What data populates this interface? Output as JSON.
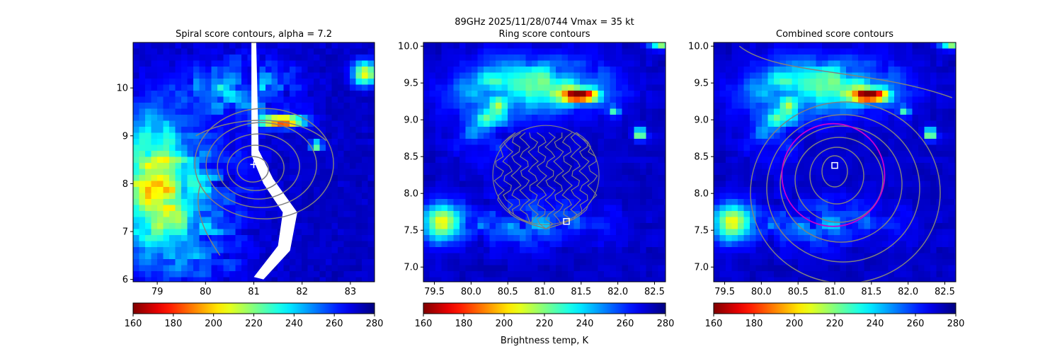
{
  "suptitle": "89GHz  2025/11/28/0744    Vmax = 35 kt",
  "colorbar_label": "Brightness temp, K",
  "colormap": [
    "#800000",
    "#ff0000",
    "#ff8000",
    "#ffff00",
    "#80ff80",
    "#00ffff",
    "#0080ff",
    "#0000ff",
    "#000080"
  ],
  "contour_color": "#808080",
  "circle_color": "#cc00cc",
  "chart_data": [
    {
      "type": "heatmap",
      "title": "Spiral score contours, alpha =  7.2",
      "xlim": [
        78.5,
        83.5
      ],
      "ylim": [
        5.95,
        10.95
      ],
      "xticks": [
        "79",
        "80",
        "81",
        "82",
        "83"
      ],
      "xtick_values": [
        79,
        80,
        81,
        82,
        83
      ],
      "yticks": [
        "6",
        "7",
        "8",
        "9",
        "10"
      ],
      "ytick_values": [
        6,
        7,
        8,
        9,
        10
      ],
      "colorbar": {
        "range": [
          160,
          280
        ],
        "ticks": [
          "160",
          "180",
          "200",
          "220",
          "240",
          "260",
          "280"
        ],
        "tick_values": [
          160,
          180,
          200,
          220,
          240,
          260,
          280
        ]
      },
      "center_marker": {
        "shape": "plus",
        "x": 81.0,
        "y": 8.4
      },
      "contours": "elliptical spiral score contours centered near 81.0E, 8.3N"
    },
    {
      "type": "heatmap",
      "title": "Ring score contours",
      "xlim": [
        79.35,
        82.65
      ],
      "ylim": [
        6.8,
        10.05
      ],
      "xticks": [
        "79.5",
        "80.0",
        "80.5",
        "81.0",
        "81.5",
        "82.0",
        "82.5"
      ],
      "xtick_values": [
        79.5,
        80.0,
        80.5,
        81.0,
        81.5,
        82.0,
        82.5
      ],
      "yticks": [
        "7.0",
        "7.5",
        "8.0",
        "8.5",
        "9.0",
        "9.5",
        "10.0"
      ],
      "ytick_values": [
        7.0,
        7.5,
        8.0,
        8.5,
        9.0,
        9.5,
        10.0
      ],
      "colorbar": {
        "range": [
          160,
          280
        ],
        "ticks": [
          "160",
          "180",
          "200",
          "220",
          "240",
          "260",
          "280"
        ],
        "tick_values": [
          160,
          180,
          200,
          220,
          240,
          260,
          280
        ]
      },
      "center_marker": {
        "shape": "square",
        "x": 81.3,
        "y": 7.62
      },
      "contours": "dense irregular ring score contours within a disc centered near 81.0E, 8.25N"
    },
    {
      "type": "heatmap",
      "title": "Combined score contours",
      "xlim": [
        79.35,
        82.65
      ],
      "ylim": [
        6.8,
        10.05
      ],
      "xticks": [
        "79.5",
        "80.0",
        "80.5",
        "81.0",
        "81.5",
        "82.0",
        "82.5"
      ],
      "xtick_values": [
        79.5,
        80.0,
        80.5,
        81.0,
        81.5,
        82.0,
        82.5
      ],
      "yticks": [
        "7.0",
        "7.5",
        "8.0",
        "8.5",
        "9.0",
        "9.5",
        "10.0"
      ],
      "yticks_note": "",
      "ytick_values": [
        7.0,
        7.5,
        8.0,
        8.5,
        9.0,
        9.5,
        10.0
      ],
      "colorbar": {
        "range": [
          160,
          280
        ],
        "ticks": [
          "160",
          "180",
          "200",
          "220",
          "240",
          "260",
          "280"
        ],
        "tick_values": [
          160,
          180,
          200,
          220,
          240,
          260,
          280
        ]
      },
      "center_marker": {
        "shape": "square",
        "x": 81.0,
        "y": 8.38
      },
      "circle": {
        "x": 80.98,
        "y": 8.25,
        "r": 0.7
      },
      "contours": "concentric combined score contours centered near 81.0E, 8.3N"
    }
  ]
}
